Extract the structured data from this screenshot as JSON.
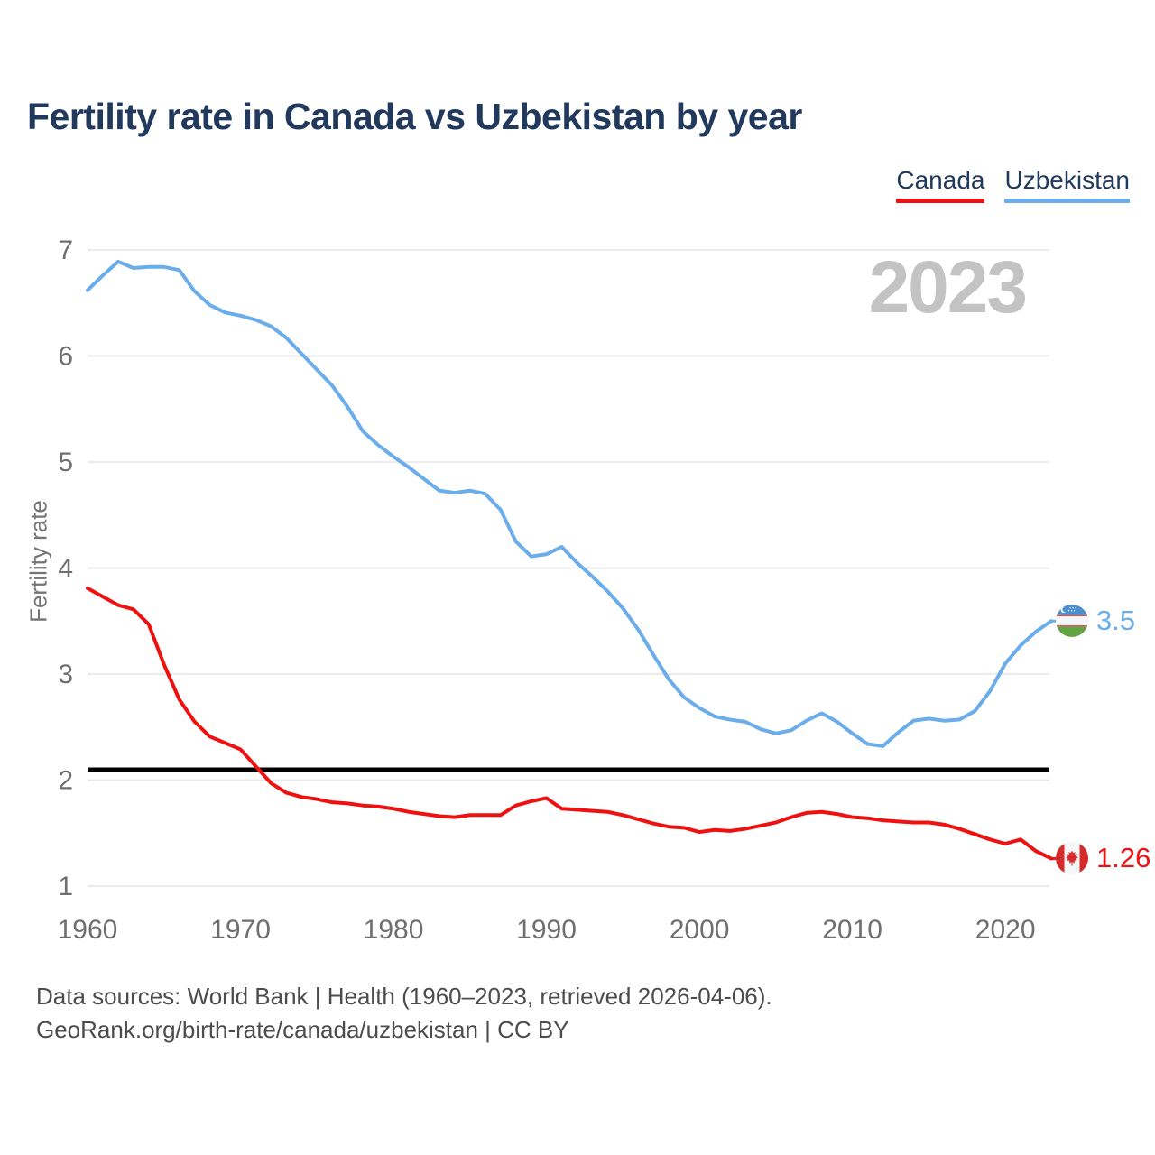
{
  "title": "Fertility rate in Canada vs Uzbekistan by year",
  "watermark": "2023",
  "legend": [
    {
      "label": "Canada",
      "color": "#ef1010"
    },
    {
      "label": "Uzbekistan",
      "color": "#6badea"
    }
  ],
  "y_axis": {
    "label": "Fertility rate",
    "ticks": [
      1,
      2,
      3,
      4,
      5,
      6,
      7
    ],
    "range": [
      1,
      7
    ]
  },
  "x_axis": {
    "ticks": [
      1960,
      1970,
      1980,
      1990,
      2000,
      2010,
      2020
    ],
    "range": [
      1960,
      2023
    ]
  },
  "replacement_line": {
    "value": 2.1,
    "color": "#000000"
  },
  "chart_data": {
    "type": "line",
    "title": "Fertility rate in Canada vs Uzbekistan by year",
    "xlabel": "",
    "ylabel": "Fertility rate",
    "ylim": [
      1,
      7
    ],
    "grid": "horizontal",
    "legend_position": "top-right",
    "x": [
      1960,
      1961,
      1962,
      1963,
      1964,
      1965,
      1966,
      1967,
      1968,
      1969,
      1970,
      1971,
      1972,
      1973,
      1974,
      1975,
      1976,
      1977,
      1978,
      1979,
      1980,
      1981,
      1982,
      1983,
      1984,
      1985,
      1986,
      1987,
      1988,
      1989,
      1990,
      1991,
      1992,
      1993,
      1994,
      1995,
      1996,
      1997,
      1998,
      1999,
      2000,
      2001,
      2002,
      2003,
      2004,
      2005,
      2006,
      2007,
      2008,
      2009,
      2010,
      2011,
      2012,
      2013,
      2014,
      2015,
      2016,
      2017,
      2018,
      2019,
      2020,
      2021,
      2022,
      2023
    ],
    "series": [
      {
        "name": "Canada",
        "color": "#ef1010",
        "end_label": "1.26",
        "end_value": 1.26,
        "flag_icon": "canada-flag-icon",
        "values": [
          3.81,
          3.73,
          3.65,
          3.61,
          3.47,
          3.09,
          2.76,
          2.55,
          2.41,
          2.35,
          2.29,
          2.13,
          1.97,
          1.88,
          1.84,
          1.82,
          1.79,
          1.78,
          1.76,
          1.75,
          1.73,
          1.7,
          1.68,
          1.66,
          1.65,
          1.67,
          1.67,
          1.67,
          1.76,
          1.8,
          1.83,
          1.73,
          1.72,
          1.71,
          1.7,
          1.67,
          1.63,
          1.59,
          1.56,
          1.55,
          1.51,
          1.53,
          1.52,
          1.54,
          1.57,
          1.6,
          1.65,
          1.69,
          1.7,
          1.68,
          1.65,
          1.64,
          1.62,
          1.61,
          1.6,
          1.6,
          1.58,
          1.54,
          1.49,
          1.44,
          1.4,
          1.44,
          1.33,
          1.26
        ]
      },
      {
        "name": "Uzbekistan",
        "color": "#6badea",
        "end_label": "3.5",
        "end_value": 3.5,
        "flag_icon": "uzbekistan-flag-icon",
        "values": [
          6.62,
          6.76,
          6.89,
          6.83,
          6.84,
          6.84,
          6.81,
          6.61,
          6.48,
          6.41,
          6.38,
          6.34,
          6.28,
          6.17,
          6.02,
          5.87,
          5.72,
          5.52,
          5.29,
          5.16,
          5.05,
          4.95,
          4.84,
          4.73,
          4.71,
          4.73,
          4.7,
          4.55,
          4.25,
          4.11,
          4.13,
          4.2,
          4.05,
          3.92,
          3.78,
          3.62,
          3.42,
          3.18,
          2.95,
          2.78,
          2.68,
          2.6,
          2.57,
          2.55,
          2.48,
          2.44,
          2.47,
          2.56,
          2.63,
          2.55,
          2.44,
          2.34,
          2.32,
          2.45,
          2.56,
          2.58,
          2.56,
          2.57,
          2.65,
          2.84,
          3.1,
          3.27,
          3.4,
          3.5
        ]
      }
    ],
    "annotations": {
      "replacement_level_line": 2.1,
      "year_watermark": "2023"
    }
  },
  "footer": {
    "line1": "Data sources: World Bank | Health (1960–2023, retrieved 2026-04-06).",
    "line2": "GeoRank.org/birth-rate/canada/uzbekistan | CC BY"
  }
}
